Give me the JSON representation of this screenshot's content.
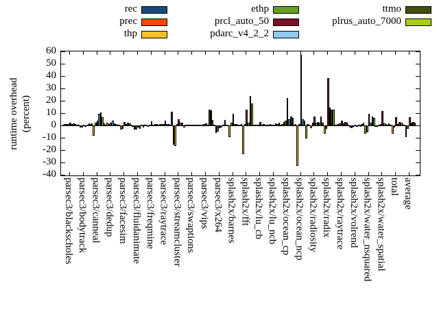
{
  "figure": {
    "background": "#ffffff",
    "ylabel_line1": "runtime overhead",
    "ylabel_line2": "(percent)"
  },
  "chart_data": {
    "type": "bar",
    "title": "",
    "xlabel": "",
    "ylabel": "runtime overhead (percent)",
    "ylim": [
      -40,
      60
    ],
    "ytick_step": 10,
    "yticks": [
      60,
      50,
      40,
      30,
      20,
      10,
      0,
      -10,
      -20,
      -30,
      -40
    ],
    "grid": false,
    "legend_position": "top",
    "bar_border_color": "#000000",
    "categories": [
      "parsec3/blackscholes",
      "parsec3/bodytrack",
      "parsec3/canneal",
      "parsec3/dedup",
      "parsec3/facesim",
      "parsec3/fluidanimate",
      "parsec3/freqmine",
      "parsec3/raytrace",
      "parsec3/streamcluster",
      "parsec3/swaptions",
      "parsec3/vips",
      "parsec3/x264",
      "splash2x/barnes",
      "splash2x/fft",
      "splash2x/lu_cb",
      "splash2x/lu_ncb",
      "splash2x/ocean_cp",
      "splash2x/ocean_ncp",
      "splash2x/radiosity",
      "splash2x/radix",
      "splash2x/raytrace",
      "splash2x/volrend",
      "splash2x/water_nsquared",
      "splash2x/water_spatial",
      "total",
      "average"
    ],
    "series": [
      {
        "name": "rec",
        "color": "#174a7c",
        "values": [
          0.5,
          0.5,
          1,
          1.5,
          0.5,
          0.5,
          0.5,
          0.5,
          11,
          0.3,
          0.5,
          4.5,
          0.5,
          0.5,
          0.3,
          0.5,
          0.5,
          0.5,
          1,
          7,
          0.5,
          0.3,
          1,
          -0.5,
          1.5,
          1
        ]
      },
      {
        "name": "prec",
        "color": "#ff4500",
        "values": [
          1,
          0.5,
          1.5,
          0.5,
          0.5,
          -0.5,
          0.5,
          1,
          -15,
          0.5,
          0.5,
          0.5,
          0.5,
          1,
          0.3,
          0.5,
          1,
          1,
          0.5,
          2,
          0.5,
          -1,
          2,
          -0.5,
          0.5,
          0.5
        ]
      },
      {
        "name": "thp",
        "color": "#fdc029",
        "values": [
          1,
          -1,
          -8,
          2,
          -3,
          -3,
          -0.5,
          1,
          -16,
          0.3,
          0.5,
          -5.5,
          -9,
          -23,
          0.5,
          1,
          3,
          -32,
          -1.5,
          -6,
          1,
          -1.5,
          -6,
          0.5,
          -6,
          -9
        ]
      },
      {
        "name": "ethp",
        "color": "#63a11f",
        "values": [
          1,
          -1,
          2,
          1,
          -2,
          -3,
          0.5,
          1,
          1,
          0.3,
          1,
          -4.5,
          2,
          1,
          0.5,
          0.5,
          4,
          1,
          2,
          -2,
          1.5,
          -0.5,
          -5,
          1,
          -1,
          -2
        ]
      },
      {
        "name": "prcl_auto_50",
        "color": "#7d0f26",
        "values": [
          2.5,
          0.5,
          4,
          2,
          3,
          -1,
          3.5,
          4,
          5,
          0.8,
          1.5,
          -1.5,
          9.5,
          13,
          3,
          0.5,
          22,
          57,
          7,
          38.5,
          4,
          0.5,
          9.5,
          11.5,
          6.5,
          6.5
        ]
      },
      {
        "name": "pdarc_v4_2_2",
        "color": "#8ecbef",
        "values": [
          1,
          -0.5,
          9.5,
          4,
          1,
          -2,
          0.5,
          1,
          2,
          0.3,
          0.5,
          -1,
          1,
          2,
          0.5,
          1.5,
          5,
          5,
          2,
          14.5,
          1.5,
          -0.5,
          2,
          1.5,
          1,
          2
        ]
      },
      {
        "name": "ttmo",
        "color": "#42500f",
        "values": [
          1.5,
          0.5,
          10.5,
          1.5,
          2,
          0.5,
          1,
          1,
          2,
          0.3,
          13,
          0.5,
          1,
          24,
          1,
          1,
          7,
          4,
          3,
          13,
          3,
          0.5,
          7,
          1,
          3,
          3
        ]
      },
      {
        "name": "plrus_auto_7000",
        "color": "#a9ce14",
        "values": [
          1,
          1.5,
          6.5,
          1,
          1.5,
          -1,
          1,
          0.5,
          -1,
          0.3,
          12,
          4.5,
          0.5,
          18,
          0.5,
          2.5,
          6,
          -10,
          2,
          13,
          2.5,
          -0.5,
          6,
          0.5,
          2.5,
          2.5
        ]
      }
    ],
    "legend_columns": [
      [
        "rec",
        "prec",
        "thp"
      ],
      [
        "ethp",
        "prcl_auto_50",
        "pdarc_v4_2_2"
      ],
      [
        "ttmo",
        "plrus_auto_7000"
      ]
    ]
  }
}
